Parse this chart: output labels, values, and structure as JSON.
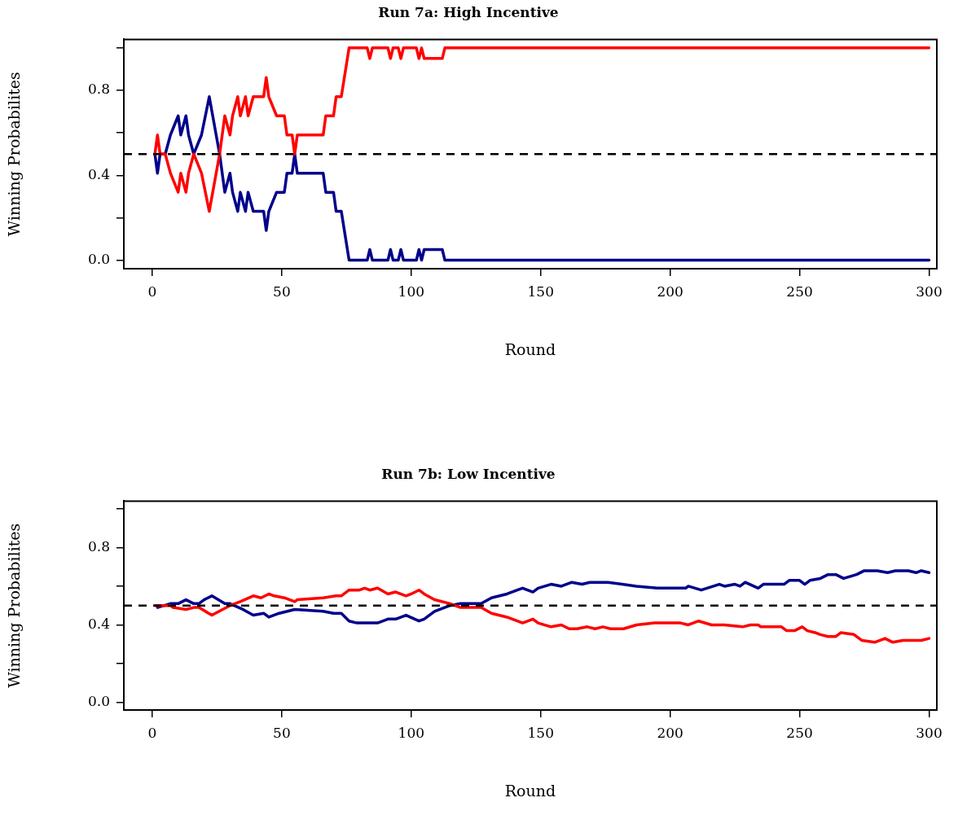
{
  "chart_data": [
    {
      "type": "line",
      "title": "Run 7a: High Incentive",
      "xlabel": "Round",
      "ylabel": "Winning Probabilites",
      "xlim": [
        -11,
        303
      ],
      "ylim": [
        -0.04,
        1.04
      ],
      "xticks": [
        0,
        50,
        100,
        150,
        200,
        250,
        300
      ],
      "yticks": [
        {
          "value": 0,
          "label": "0.0"
        },
        {
          "value": 0.2,
          "label": null
        },
        {
          "value": 0.4,
          "label": "0.4"
        },
        {
          "value": 0.6,
          "label": null
        },
        {
          "value": 0.8,
          "label": "0.8"
        },
        {
          "value": 1,
          "label": null
        }
      ],
      "grid": false,
      "legend": false,
      "marker": "none",
      "line_style": "solid",
      "ref_lines": [
        {
          "axis": "y",
          "value": 0.5,
          "color": "#000000",
          "line_style": "dashed"
        }
      ],
      "series": [
        {
          "color": "#ff0000",
          "x": [
            1,
            2,
            3,
            5,
            7,
            10,
            11,
            13,
            14,
            16,
            19,
            22,
            26,
            28,
            30,
            31,
            33,
            34,
            36,
            37,
            39,
            43,
            44,
            45,
            48,
            51,
            52,
            54,
            55,
            56,
            66,
            67,
            70,
            71,
            73,
            76,
            83,
            84,
            85,
            91,
            92,
            93,
            95,
            96,
            97,
            102,
            103,
            104,
            105,
            112,
            113,
            300
          ],
          "values": [
            0.5,
            0.59,
            0.5,
            0.5,
            0.41,
            0.32,
            0.41,
            0.32,
            0.41,
            0.5,
            0.41,
            0.23,
            0.5,
            0.68,
            0.59,
            0.68,
            0.77,
            0.68,
            0.77,
            0.68,
            0.77,
            0.77,
            0.86,
            0.77,
            0.68,
            0.68,
            0.59,
            0.59,
            0.5,
            0.59,
            0.59,
            0.68,
            0.68,
            0.77,
            0.77,
            1,
            1,
            0.95,
            1,
            1,
            0.95,
            1,
            1,
            0.95,
            1,
            1,
            0.95,
            1,
            0.95,
            0.95,
            1,
            1
          ]
        },
        {
          "color": "#00008b",
          "x": [
            1,
            2,
            3,
            5,
            7,
            10,
            11,
            13,
            14,
            16,
            19,
            22,
            26,
            28,
            30,
            31,
            33,
            34,
            36,
            37,
            39,
            43,
            44,
            45,
            48,
            51,
            52,
            54,
            55,
            56,
            66,
            67,
            70,
            71,
            73,
            76,
            83,
            84,
            85,
            91,
            92,
            93,
            95,
            96,
            97,
            102,
            103,
            104,
            105,
            112,
            113,
            300
          ],
          "values": [
            0.5,
            0.41,
            0.5,
            0.5,
            0.59,
            0.68,
            0.59,
            0.68,
            0.59,
            0.5,
            0.59,
            0.77,
            0.5,
            0.32,
            0.41,
            0.32,
            0.23,
            0.32,
            0.23,
            0.32,
            0.23,
            0.23,
            0.14,
            0.23,
            0.32,
            0.32,
            0.41,
            0.41,
            0.5,
            0.41,
            0.41,
            0.32,
            0.32,
            0.23,
            0.23,
            0,
            0,
            0.05,
            0,
            0,
            0.05,
            0,
            0,
            0.05,
            0,
            0,
            0.05,
            0,
            0.05,
            0.05,
            0,
            0
          ]
        }
      ]
    },
    {
      "type": "line",
      "title": "Run 7b: Low Incentive",
      "xlabel": "Round",
      "ylabel": "Winning Probabilites",
      "xlim": [
        -11,
        303
      ],
      "ylim": [
        -0.04,
        1.04
      ],
      "xticks": [
        0,
        50,
        100,
        150,
        200,
        250,
        300
      ],
      "yticks": [
        {
          "value": 0,
          "label": "0.0"
        },
        {
          "value": 0.2,
          "label": null
        },
        {
          "value": 0.4,
          "label": "0.4"
        },
        {
          "value": 0.6,
          "label": null
        },
        {
          "value": 0.8,
          "label": "0.8"
        },
        {
          "value": 1,
          "label": null
        }
      ],
      "grid": false,
      "legend": false,
      "marker": "none",
      "line_style": "solid",
      "ref_lines": [
        {
          "axis": "y",
          "value": 0.5,
          "color": "#000000",
          "line_style": "dashed"
        }
      ],
      "series": [
        {
          "color": "#ff0000",
          "x": [
            1,
            7,
            8,
            13,
            16,
            18,
            23,
            30,
            34,
            39,
            42,
            45,
            47,
            51,
            55,
            56,
            66,
            71,
            73,
            76,
            80,
            82,
            84,
            87,
            91,
            94,
            98,
            100,
            103,
            105,
            109,
            115,
            119,
            127,
            131,
            137,
            141,
            143,
            147,
            149,
            154,
            158,
            161,
            164,
            168,
            171,
            174,
            177,
            182,
            187,
            194,
            204,
            207,
            211,
            216,
            221,
            228,
            231,
            234,
            235,
            243,
            245,
            248,
            251,
            253,
            256,
            258,
            261,
            264,
            266,
            271,
            274,
            279,
            283,
            286,
            290,
            294,
            297,
            300
          ],
          "values": [
            0.5,
            0.5,
            0.49,
            0.48,
            0.49,
            0.49,
            0.45,
            0.5,
            0.52,
            0.55,
            0.54,
            0.56,
            0.55,
            0.54,
            0.52,
            0.53,
            0.54,
            0.55,
            0.55,
            0.58,
            0.58,
            0.59,
            0.58,
            0.59,
            0.56,
            0.57,
            0.55,
            0.56,
            0.58,
            0.56,
            0.53,
            0.51,
            0.49,
            0.49,
            0.46,
            0.44,
            0.42,
            0.41,
            0.43,
            0.41,
            0.39,
            0.4,
            0.38,
            0.38,
            0.39,
            0.38,
            0.39,
            0.38,
            0.38,
            0.4,
            0.41,
            0.41,
            0.4,
            0.42,
            0.4,
            0.4,
            0.39,
            0.4,
            0.4,
            0.39,
            0.39,
            0.37,
            0.37,
            0.39,
            0.37,
            0.36,
            0.35,
            0.34,
            0.34,
            0.36,
            0.35,
            0.32,
            0.31,
            0.33,
            0.31,
            0.32,
            0.32,
            0.32,
            0.33
          ]
        },
        {
          "color": "#00008b",
          "x": [
            2,
            7,
            10,
            13,
            16,
            18,
            20,
            23,
            28,
            30,
            35,
            39,
            43,
            45,
            49,
            55,
            66,
            70,
            73,
            76,
            79,
            87,
            91,
            94,
            98,
            103,
            105,
            109,
            115,
            119,
            127,
            131,
            137,
            141,
            143,
            147,
            149,
            154,
            158,
            162,
            166,
            169,
            176,
            187,
            195,
            206,
            207,
            212,
            219,
            221,
            225,
            227,
            229,
            234,
            236,
            244,
            246,
            250,
            252,
            254,
            258,
            261,
            264,
            267,
            272,
            275,
            280,
            284,
            287,
            292,
            295,
            297,
            300
          ],
          "values": [
            0.49,
            0.51,
            0.51,
            0.53,
            0.51,
            0.51,
            0.53,
            0.55,
            0.51,
            0.51,
            0.48,
            0.45,
            0.46,
            0.44,
            0.46,
            0.48,
            0.47,
            0.46,
            0.46,
            0.42,
            0.41,
            0.41,
            0.43,
            0.43,
            0.45,
            0.42,
            0.43,
            0.47,
            0.5,
            0.51,
            0.51,
            0.54,
            0.56,
            0.58,
            0.59,
            0.57,
            0.59,
            0.61,
            0.6,
            0.62,
            0.61,
            0.62,
            0.62,
            0.6,
            0.59,
            0.59,
            0.6,
            0.58,
            0.61,
            0.6,
            0.61,
            0.6,
            0.62,
            0.59,
            0.61,
            0.61,
            0.63,
            0.63,
            0.61,
            0.63,
            0.64,
            0.66,
            0.66,
            0.64,
            0.66,
            0.68,
            0.68,
            0.67,
            0.68,
            0.68,
            0.67,
            0.68,
            0.67
          ]
        }
      ]
    }
  ]
}
